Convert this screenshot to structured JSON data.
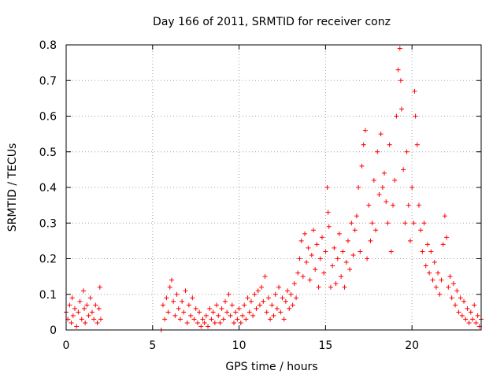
{
  "chart_data": {
    "type": "scatter",
    "title": "Day 166 of 2011, SRMTID for receiver conz",
    "xlabel": "GPS time / hours",
    "ylabel": "SRMTID / TECUs",
    "xlim": [
      0,
      24
    ],
    "ylim": [
      0,
      0.8
    ],
    "xticks": [
      0,
      5,
      10,
      15,
      20
    ],
    "xtick_labels": [
      "0",
      "5",
      "10",
      "15",
      "20"
    ],
    "yticks": [
      0,
      0.1,
      0.2,
      0.3,
      0.4,
      0.5,
      0.6,
      0.7,
      0.8
    ],
    "ytick_labels": [
      "0",
      "0.1",
      "0.2",
      "0.3",
      "0.4",
      "0.5",
      "0.6",
      "0.7",
      "0.8"
    ],
    "grid": true,
    "marker": "+",
    "marker_color": "#ff0000",
    "series": [
      {
        "name": "SRMTID",
        "points": [
          [
            0.0,
            0.05
          ],
          [
            0.1,
            0.03
          ],
          [
            0.2,
            0.07
          ],
          [
            0.3,
            0.02
          ],
          [
            0.35,
            0.09
          ],
          [
            0.4,
            0.04
          ],
          [
            0.5,
            0.06
          ],
          [
            0.6,
            0.01
          ],
          [
            0.7,
            0.05
          ],
          [
            0.8,
            0.08
          ],
          [
            0.9,
            0.03
          ],
          [
            1.0,
            0.11
          ],
          [
            1.05,
            0.06
          ],
          [
            1.1,
            0.02
          ],
          [
            1.2,
            0.07
          ],
          [
            1.3,
            0.04
          ],
          [
            1.4,
            0.09
          ],
          [
            1.5,
            0.05
          ],
          [
            1.6,
            0.03
          ],
          [
            1.7,
            0.07
          ],
          [
            1.8,
            0.02
          ],
          [
            1.9,
            0.06
          ],
          [
            1.95,
            0.12
          ],
          [
            2.0,
            0.03
          ],
          [
            5.5,
            0.0
          ],
          [
            5.6,
            0.07
          ],
          [
            5.7,
            0.03
          ],
          [
            5.8,
            0.09
          ],
          [
            5.9,
            0.05
          ],
          [
            6.0,
            0.12
          ],
          [
            6.1,
            0.14
          ],
          [
            6.2,
            0.08
          ],
          [
            6.3,
            0.04
          ],
          [
            6.4,
            0.1
          ],
          [
            6.5,
            0.06
          ],
          [
            6.6,
            0.03
          ],
          [
            6.7,
            0.08
          ],
          [
            6.8,
            0.05
          ],
          [
            6.9,
            0.11
          ],
          [
            7.0,
            0.02
          ],
          [
            7.1,
            0.07
          ],
          [
            7.2,
            0.04
          ],
          [
            7.3,
            0.09
          ],
          [
            7.4,
            0.03
          ],
          [
            7.5,
            0.06
          ],
          [
            7.6,
            0.02
          ],
          [
            7.7,
            0.05
          ],
          [
            7.8,
            0.01
          ],
          [
            7.9,
            0.03
          ],
          [
            8.0,
            0.02
          ],
          [
            8.1,
            0.04
          ],
          [
            8.2,
            0.01
          ],
          [
            8.3,
            0.06
          ],
          [
            8.4,
            0.03
          ],
          [
            8.5,
            0.05
          ],
          [
            8.6,
            0.02
          ],
          [
            8.7,
            0.07
          ],
          [
            8.8,
            0.04
          ],
          [
            8.9,
            0.02
          ],
          [
            9.0,
            0.06
          ],
          [
            9.1,
            0.03
          ],
          [
            9.2,
            0.08
          ],
          [
            9.3,
            0.05
          ],
          [
            9.4,
            0.1
          ],
          [
            9.5,
            0.04
          ],
          [
            9.6,
            0.07
          ],
          [
            9.7,
            0.02
          ],
          [
            9.8,
            0.05
          ],
          [
            9.9,
            0.03
          ],
          [
            10.0,
            0.06
          ],
          [
            10.1,
            0.02
          ],
          [
            10.2,
            0.04
          ],
          [
            10.3,
            0.07
          ],
          [
            10.4,
            0.03
          ],
          [
            10.5,
            0.09
          ],
          [
            10.6,
            0.05
          ],
          [
            10.7,
            0.08
          ],
          [
            10.8,
            0.04
          ],
          [
            10.9,
            0.1
          ],
          [
            11.0,
            0.06
          ],
          [
            11.1,
            0.11
          ],
          [
            11.2,
            0.07
          ],
          [
            11.3,
            0.12
          ],
          [
            11.4,
            0.08
          ],
          [
            11.5,
            0.15
          ],
          [
            11.6,
            0.05
          ],
          [
            11.7,
            0.09
          ],
          [
            11.8,
            0.03
          ],
          [
            11.9,
            0.07
          ],
          [
            12.0,
            0.04
          ],
          [
            12.1,
            0.1
          ],
          [
            12.2,
            0.06
          ],
          [
            12.3,
            0.12
          ],
          [
            12.4,
            0.05
          ],
          [
            12.5,
            0.09
          ],
          [
            12.6,
            0.03
          ],
          [
            12.7,
            0.08
          ],
          [
            12.8,
            0.11
          ],
          [
            12.9,
            0.06
          ],
          [
            13.0,
            0.1
          ],
          [
            13.1,
            0.07
          ],
          [
            13.2,
            0.13
          ],
          [
            13.3,
            0.09
          ],
          [
            13.4,
            0.16
          ],
          [
            13.5,
            0.2
          ],
          [
            13.6,
            0.25
          ],
          [
            13.7,
            0.15
          ],
          [
            13.8,
            0.27
          ],
          [
            13.9,
            0.19
          ],
          [
            14.0,
            0.23
          ],
          [
            14.1,
            0.14
          ],
          [
            14.2,
            0.21
          ],
          [
            14.3,
            0.28
          ],
          [
            14.4,
            0.17
          ],
          [
            14.5,
            0.24
          ],
          [
            14.6,
            0.12
          ],
          [
            14.7,
            0.2
          ],
          [
            14.8,
            0.26
          ],
          [
            14.9,
            0.16
          ],
          [
            15.0,
            0.22
          ],
          [
            15.1,
            0.4
          ],
          [
            15.15,
            0.33
          ],
          [
            15.2,
            0.29
          ],
          [
            15.3,
            0.12
          ],
          [
            15.4,
            0.18
          ],
          [
            15.5,
            0.23
          ],
          [
            15.6,
            0.13
          ],
          [
            15.7,
            0.2
          ],
          [
            15.8,
            0.27
          ],
          [
            15.9,
            0.15
          ],
          [
            16.0,
            0.22
          ],
          [
            16.1,
            0.12
          ],
          [
            16.2,
            0.19
          ],
          [
            16.3,
            0.25
          ],
          [
            16.4,
            0.17
          ],
          [
            16.5,
            0.3
          ],
          [
            16.6,
            0.21
          ],
          [
            16.7,
            0.28
          ],
          [
            16.8,
            0.32
          ],
          [
            16.9,
            0.4
          ],
          [
            17.0,
            0.22
          ],
          [
            17.1,
            0.46
          ],
          [
            17.2,
            0.52
          ],
          [
            17.3,
            0.56
          ],
          [
            17.4,
            0.2
          ],
          [
            17.5,
            0.35
          ],
          [
            17.6,
            0.25
          ],
          [
            17.7,
            0.3
          ],
          [
            17.8,
            0.42
          ],
          [
            17.9,
            0.28
          ],
          [
            18.0,
            0.5
          ],
          [
            18.1,
            0.38
          ],
          [
            18.2,
            0.55
          ],
          [
            18.3,
            0.4
          ],
          [
            18.4,
            0.44
          ],
          [
            18.5,
            0.36
          ],
          [
            18.6,
            0.3
          ],
          [
            18.7,
            0.52
          ],
          [
            18.8,
            0.22
          ],
          [
            18.9,
            0.35
          ],
          [
            19.0,
            0.42
          ],
          [
            19.1,
            0.6
          ],
          [
            19.2,
            0.73
          ],
          [
            19.3,
            0.79
          ],
          [
            19.35,
            0.7
          ],
          [
            19.4,
            0.62
          ],
          [
            19.5,
            0.45
          ],
          [
            19.6,
            0.3
          ],
          [
            19.7,
            0.5
          ],
          [
            19.8,
            0.35
          ],
          [
            19.9,
            0.25
          ],
          [
            20.0,
            0.4
          ],
          [
            20.1,
            0.3
          ],
          [
            20.15,
            0.67
          ],
          [
            20.2,
            0.6
          ],
          [
            20.3,
            0.52
          ],
          [
            20.4,
            0.35
          ],
          [
            20.5,
            0.28
          ],
          [
            20.6,
            0.22
          ],
          [
            20.7,
            0.3
          ],
          [
            20.8,
            0.18
          ],
          [
            20.9,
            0.24
          ],
          [
            21.0,
            0.16
          ],
          [
            21.1,
            0.22
          ],
          [
            21.2,
            0.14
          ],
          [
            21.3,
            0.19
          ],
          [
            21.4,
            0.12
          ],
          [
            21.5,
            0.16
          ],
          [
            21.6,
            0.1
          ],
          [
            21.7,
            0.14
          ],
          [
            21.8,
            0.24
          ],
          [
            21.9,
            0.32
          ],
          [
            22.0,
            0.26
          ],
          [
            22.1,
            0.12
          ],
          [
            22.2,
            0.15
          ],
          [
            22.3,
            0.09
          ],
          [
            22.4,
            0.13
          ],
          [
            22.5,
            0.07
          ],
          [
            22.6,
            0.11
          ],
          [
            22.7,
            0.05
          ],
          [
            22.8,
            0.09
          ],
          [
            22.9,
            0.04
          ],
          [
            23.0,
            0.08
          ],
          [
            23.1,
            0.03
          ],
          [
            23.2,
            0.06
          ],
          [
            23.3,
            0.02
          ],
          [
            23.4,
            0.05
          ],
          [
            23.5,
            0.03
          ],
          [
            23.6,
            0.07
          ],
          [
            23.7,
            0.02
          ],
          [
            23.8,
            0.04
          ],
          [
            23.9,
            0.01
          ],
          [
            24.0,
            0.03
          ]
        ]
      }
    ]
  }
}
